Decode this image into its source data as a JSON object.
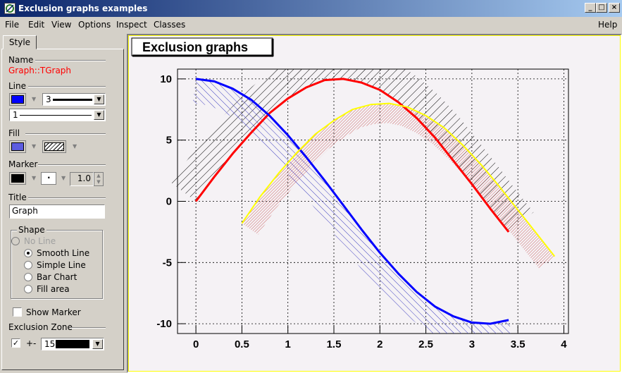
{
  "window": {
    "title": "Exclusion graphs examples"
  },
  "menu": {
    "file": "File",
    "edit": "Edit",
    "view": "View",
    "options": "Options",
    "inspect": "Inspect",
    "classes": "Classes",
    "help": "Help"
  },
  "panel": {
    "tab": "Style",
    "name_label": "Name",
    "name_value": "Graph::TGraph",
    "line_label": "Line",
    "line_color": "#0000ff",
    "line_width": "3",
    "line_style": "1",
    "fill_label": "Fill",
    "fill_color": "#5c5ce0",
    "marker_label": "Marker",
    "marker_color": "#000000",
    "marker_style": "·",
    "marker_size": "1.0",
    "title_label": "Title",
    "title_value": "Graph",
    "shape_label": "Shape",
    "shape_options": [
      "No Line",
      "Smooth Line",
      "Simple Line",
      "Bar Chart",
      "Fill area"
    ],
    "shape_selected": "Smooth Line",
    "show_marker_label": "Show Marker",
    "show_marker_checked": false,
    "exclusion_label": "Exclusion Zone",
    "exclusion_checked": true,
    "exclusion_sign": "+-",
    "exclusion_width": "15"
  },
  "chart_data": {
    "type": "line",
    "title": "Exclusion graphs",
    "xlim": [
      -0.2,
      4.05
    ],
    "ylim": [
      -10.8,
      10.8
    ],
    "x_ticks": [
      "0",
      "0.5",
      "1",
      "1.5",
      "2",
      "2.5",
      "3",
      "3.5",
      "4"
    ],
    "y_ticks": [
      "10",
      "5",
      "0",
      "-5",
      "-10"
    ],
    "grid": true,
    "series": [
      {
        "color": "#ff0000",
        "x": [
          0,
          0.2,
          0.4,
          0.6,
          0.8,
          1.0,
          1.2,
          1.4,
          1.6,
          1.8,
          2.0,
          2.2,
          2.4,
          2.6,
          2.8,
          3.0,
          3.2,
          3.4
        ],
        "y": [
          0,
          2.0,
          3.9,
          5.6,
          7.2,
          8.4,
          9.3,
          9.9,
          10.0,
          9.7,
          9.1,
          8.1,
          6.8,
          5.2,
          3.3,
          1.4,
          -0.6,
          -2.5
        ]
      },
      {
        "color": "#0000ff",
        "x": [
          0,
          0.2,
          0.4,
          0.6,
          0.8,
          1.0,
          1.2,
          1.4,
          1.6,
          1.8,
          2.0,
          2.2,
          2.4,
          2.6,
          2.8,
          3.0,
          3.2,
          3.4
        ],
        "y": [
          10.0,
          9.8,
          9.2,
          8.3,
          7.0,
          5.4,
          3.6,
          1.7,
          -0.3,
          -2.3,
          -4.2,
          -5.9,
          -7.4,
          -8.6,
          -9.4,
          -9.9,
          -10.0,
          -9.7
        ]
      },
      {
        "color": "#ffff00",
        "x": [
          0.5,
          0.7,
          0.9,
          1.1,
          1.3,
          1.5,
          1.7,
          1.9,
          2.1,
          2.3,
          2.5,
          2.7,
          2.9,
          3.1,
          3.3,
          3.5,
          3.7,
          3.9
        ],
        "y": [
          -1.8,
          0.4,
          2.3,
          4.0,
          5.5,
          6.6,
          7.5,
          7.9,
          8.0,
          7.7,
          7.0,
          6.0,
          4.6,
          3.0,
          1.2,
          -0.7,
          -2.6,
          -4.5
        ]
      }
    ]
  }
}
